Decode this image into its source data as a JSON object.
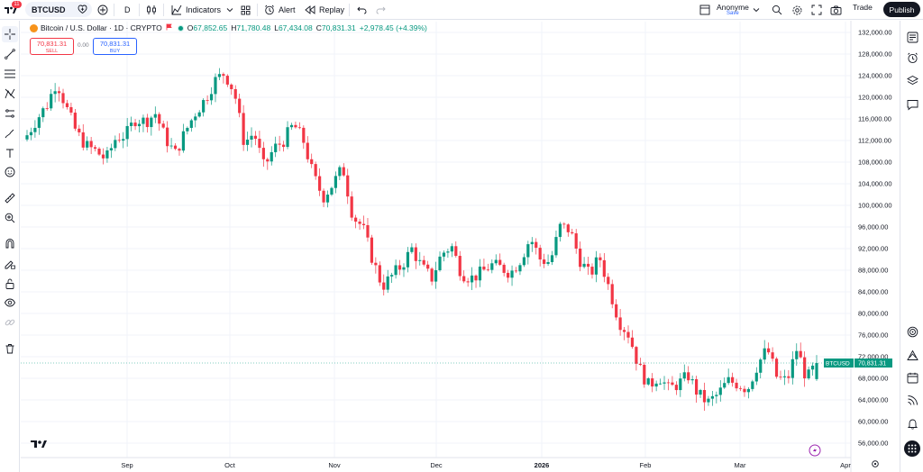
{
  "header": {
    "notification_count": "11",
    "symbol": "BTCUSD",
    "interval": "D",
    "indicators_label": "Indicators",
    "alert_label": "Alert",
    "replay_label": "Replay",
    "layout_name": "Anonyme",
    "layout_status": "Save",
    "trade_label": "Trade",
    "publish_label": "Publish"
  },
  "legend": {
    "title": "Bitcoin / U.S. Dollar · 1D · CRYPTO",
    "open_label": "O",
    "open": "67,852.65",
    "high_label": "H",
    "high": "71,780.48",
    "low_label": "L",
    "low": "67,434.08",
    "close_label": "C",
    "close": "70,831.31",
    "change": "+2,978.45 (+4.39%)"
  },
  "trade": {
    "sell_price": "70,831.31",
    "sell_label": "SELL",
    "spread": "0.00",
    "buy_price": "70,831.31",
    "buy_label": "BUY"
  },
  "price_tag": {
    "symbol": "BTCUSD",
    "price": "70,831.31"
  },
  "colors": {
    "up": "#089981",
    "down": "#f23645",
    "accent": "#2962ff"
  },
  "icons": {
    "top": [
      "logo-icon",
      "add-symbol-icon",
      "compare-icon",
      "candles-icon",
      "indicators-icon",
      "templates-icon",
      "alert-icon",
      "replay-icon",
      "undo-icon",
      "redo-icon",
      "layout-icon",
      "search-icon",
      "settings-icon",
      "fullscreen-icon",
      "snapshot-icon"
    ],
    "left": [
      "crosshair-icon",
      "trend-line-icon",
      "fib-icon",
      "pattern-icon",
      "projection-icon",
      "brush-icon",
      "text-icon",
      "emoji-icon",
      "ruler-icon",
      "zoom-icon",
      "magnet-icon",
      "lock-drawing-icon",
      "lock-icon",
      "eye-icon",
      "link-icon",
      "trash-icon"
    ],
    "right": [
      "watchlist-icon",
      "alerts-icon",
      "layers-icon",
      "chat-icon",
      "target-icon",
      "ideas-icon",
      "calendar-icon",
      "broadcast-icon",
      "notifications-icon",
      "apps-icon"
    ]
  },
  "chart_data": {
    "type": "candlestick",
    "symbol": "BTCUSD",
    "interval": "1D",
    "x_ticks": [
      "Sep",
      "Oct",
      "Nov",
      "Dec",
      "2026",
      "Feb",
      "Mar",
      "Apr"
    ],
    "y_ticks": [
      "132,000.00",
      "128,000.00",
      "124,000.00",
      "120,000.00",
      "116,000.00",
      "112,000.00",
      "108,000.00",
      "104,000.00",
      "100,000.00",
      "96,000.00",
      "92,000.00",
      "88,000.00",
      "84,000.00",
      "80,000.00",
      "76,000.00",
      "72,000.00",
      "68,000.00",
      "64,000.00",
      "60,000.00",
      "56,000.00"
    ],
    "ylim": [
      54500,
      133500
    ],
    "last_price": 70831.31,
    "grid": true,
    "close_series_approx": [
      113000,
      116000,
      118500,
      123000,
      118000,
      113500,
      111000,
      110000,
      108500,
      112500,
      113000,
      116000,
      115500,
      117000,
      112500,
      109500,
      113500,
      117000,
      119500,
      123000,
      124500,
      121000,
      111500,
      113500,
      107000,
      110500,
      112000,
      115000,
      112000,
      105500,
      101500,
      104000,
      107000,
      98000,
      96000,
      90000,
      85000,
      87000,
      89000,
      92000,
      88500,
      86500,
      91000,
      92500,
      87500,
      86500,
      87500,
      89000,
      88500,
      87500,
      90000,
      94000,
      90000,
      89500,
      96000,
      95500,
      90000,
      87000,
      90500,
      84500,
      78500,
      76000,
      70000,
      66500,
      68500,
      66000,
      67000,
      68500,
      65000,
      63500,
      65000,
      67500,
      67000,
      66000,
      70500,
      73500,
      68000,
      67500,
      73500,
      67800,
      70831.31
    ],
    "xlabel": "",
    "ylabel": ""
  }
}
